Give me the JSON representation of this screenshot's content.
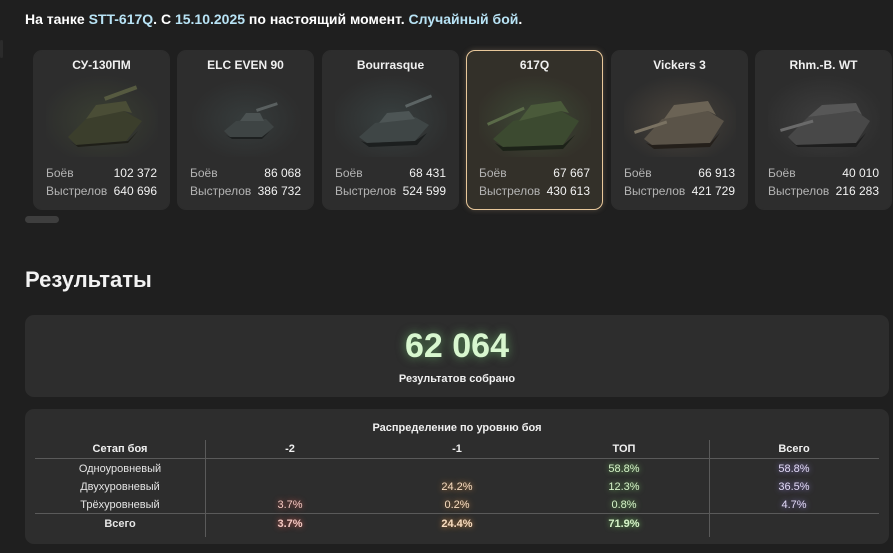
{
  "header": {
    "prefix": "На танке",
    "tank": "STT-617Q",
    "from_text": ". С",
    "date": "15.10.2025",
    "mid_text": "по настоящий момент.",
    "mode": "Случайный бой",
    "end": "."
  },
  "tanks": [
    {
      "name": "СУ-130ПМ",
      "battles_label": "Боёв",
      "battles": "102 372",
      "shots_label": "Выстрелов",
      "shots": "640 696",
      "selected": false
    },
    {
      "name": "ELC EVEN 90",
      "battles_label": "Боёв",
      "battles": "86 068",
      "shots_label": "Выстрелов",
      "shots": "386 732",
      "selected": false
    },
    {
      "name": "Bourrasque",
      "battles_label": "Боёв",
      "battles": "68 431",
      "shots_label": "Выстрелов",
      "shots": "524 599",
      "selected": false
    },
    {
      "name": "617Q",
      "battles_label": "Боёв",
      "battles": "67 667",
      "shots_label": "Выстрелов",
      "shots": "430 613",
      "selected": true
    },
    {
      "name": "Vickers 3",
      "battles_label": "Боёв",
      "battles": "66 913",
      "shots_label": "Выстрелов",
      "shots": "421 729",
      "selected": false
    },
    {
      "name": "Rhm.-B. WT",
      "battles_label": "Боёв",
      "battles": "40 010",
      "shots_label": "Выстрелов",
      "shots": "216 283",
      "selected": false
    }
  ],
  "results": {
    "title": "Результаты",
    "total": "62 064",
    "total_caption": "Результатов собрано"
  },
  "distribution": {
    "title": "Распределение по уровню боя",
    "columns": [
      "Сетап боя",
      "-2",
      "-1",
      "ТОП",
      "Всего"
    ],
    "rows": [
      {
        "label": "Одноуровневый",
        "m2": "",
        "m1": "",
        "top": "58.8%",
        "all": "58.8%"
      },
      {
        "label": "Двухуровневый",
        "m2": "",
        "m1": "24.2%",
        "top": "12.3%",
        "all": "36.5%"
      },
      {
        "label": "Трёхуровневый",
        "m2": "3.7%",
        "m1": "0.2%",
        "top": "0.8%",
        "all": "4.7%"
      }
    ],
    "total_row": {
      "label": "Всего",
      "m2": "3.7%",
      "m1": "24.4%",
      "top": "71.9%",
      "all": ""
    }
  },
  "colors": {
    "background": "#1f1f1f",
    "card": "#2d2d2d",
    "selected_border": "#e8c79a",
    "header_highlight": "#b8e3f5",
    "total_glow": "#d8f7cf"
  }
}
